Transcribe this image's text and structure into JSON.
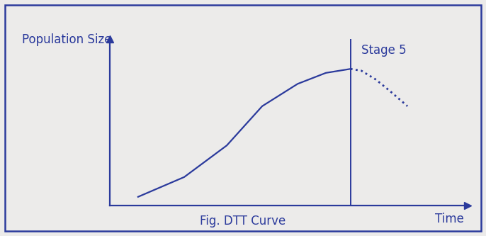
{
  "chart_data": {
    "type": "line",
    "caption": "Fig. DTT Curve",
    "y_label": "Population Size",
    "x_label": "Time",
    "x": [
      7.9,
      20.8,
      32.7,
      42.6,
      52.5,
      60.4,
      67.3,
      70.3,
      74.3,
      78.2,
      83.2
    ],
    "series": [
      {
        "values": [
          5.1,
          17,
          36,
          59.6,
          73,
          79.6,
          82,
          null,
          null,
          null,
          null
        ],
        "line_style": "solid",
        "color": "#2b3a9c"
      },
      {
        "values": [
          null,
          null,
          null,
          null,
          null,
          null,
          82,
          80.9,
          75.7,
          68.9,
          59.6
        ],
        "line_style": "dotted",
        "color": "#2b3a9c"
      }
    ],
    "divider_x": 67.3,
    "annotation": "Stage 5",
    "xlim": [
      0,
      100
    ],
    "ylim": [
      0,
      100
    ],
    "xticks": [],
    "yticks": [],
    "tick_labels": false,
    "grid": false,
    "color": "#2b3a9c"
  }
}
